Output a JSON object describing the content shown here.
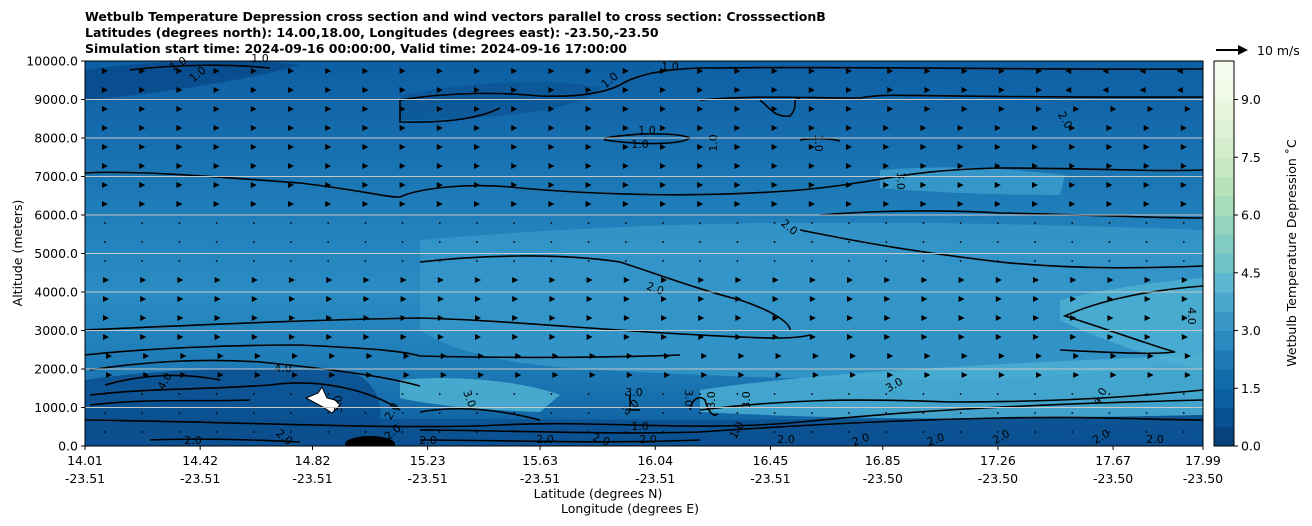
{
  "chart_data": {
    "type": "heatmap",
    "title_lines": [
      "Wetbulb Temperature Depression cross section and wind vectors parallel to cross section: CrosssectionB",
      "Latitudes (degrees north): 14.00,18.00, Longitudes (degrees east): -23.50,-23.50",
      "Simulation start time: 2024-09-16 00:00:00, Valid time: 2024-09-16 17:00:00"
    ],
    "ylabel": "Altitude (meters)",
    "xlabel_lat": "Latitude (degrees N)",
    "xlabel_lon": "Longitude (degrees E)",
    "ylim": [
      0,
      10000
    ],
    "yticks": [
      "0.0",
      "1000.0",
      "2000.0",
      "3000.0",
      "4000.0",
      "5000.0",
      "6000.0",
      "7000.0",
      "8000.0",
      "9000.0",
      "10000.0"
    ],
    "xticks": [
      {
        "lat": "14.01",
        "lon": "-23.51"
      },
      {
        "lat": "14.42",
        "lon": "-23.51"
      },
      {
        "lat": "14.82",
        "lon": "-23.51"
      },
      {
        "lat": "15.23",
        "lon": "-23.51"
      },
      {
        "lat": "15.63",
        "lon": "-23.51"
      },
      {
        "lat": "16.04",
        "lon": "-23.51"
      },
      {
        "lat": "16.45",
        "lon": "-23.51"
      },
      {
        "lat": "16.85",
        "lon": "-23.50"
      },
      {
        "lat": "17.26",
        "lon": "-23.50"
      },
      {
        "lat": "17.67",
        "lon": "-23.50"
      },
      {
        "lat": "17.99",
        "lon": "-23.50"
      }
    ],
    "colorbar": {
      "label": "Wetbulb Temperature Depression ˚C",
      "range": [
        0,
        10
      ],
      "ticks": [
        "0.0",
        "1.5",
        "3.0",
        "4.5",
        "6.0",
        "7.5",
        "9.0"
      ],
      "colormap": "GnBu_r"
    },
    "wind_key": "10 m/s",
    "contour_labels": [
      "1.0",
      "2.0",
      "3.0",
      "4.0"
    ],
    "grid": "horizontal"
  }
}
